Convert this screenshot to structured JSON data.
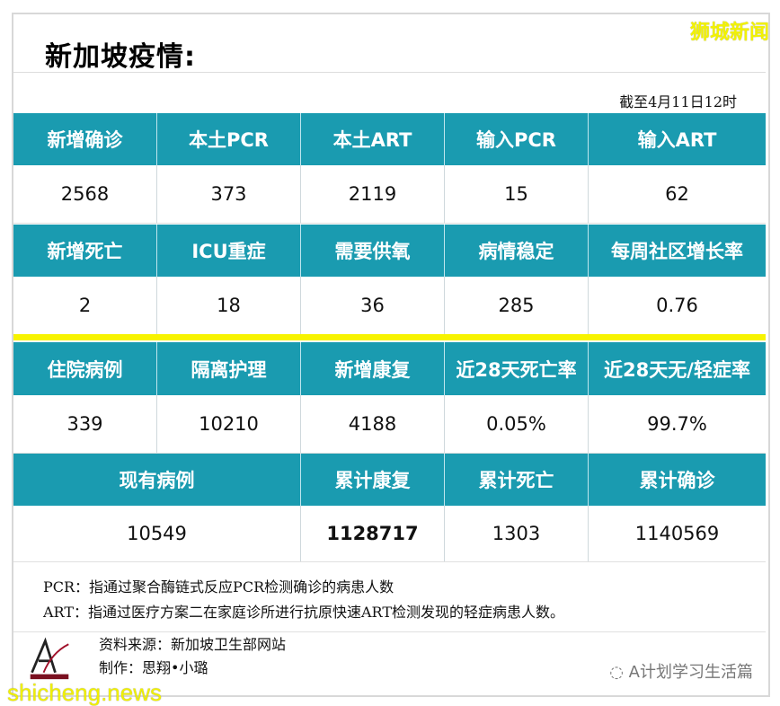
{
  "header": {
    "title": "新加坡疫情:",
    "watermark_top": "狮城新闻",
    "date": "截至4月11日12时"
  },
  "colors": {
    "header_bg": "#1a9bb0",
    "divider": "#f7f300"
  },
  "sections": [
    {
      "headers": [
        "新增确诊",
        "本土PCR",
        "本土ART",
        "输入PCR",
        "输入ART"
      ],
      "values": [
        "2568",
        "373",
        "2119",
        "15",
        "62"
      ]
    },
    {
      "headers": [
        "新增死亡",
        "ICU重症",
        "需要供氧",
        "病情稳定",
        "每周社区增长率"
      ],
      "values": [
        "2",
        "18",
        "36",
        "285",
        "0.76"
      ]
    },
    {
      "headers": [
        "住院病例",
        "隔离护理",
        "新增康复",
        "近28天死亡率",
        "近28天无/轻症率"
      ],
      "values": [
        "339",
        "10210",
        "4188",
        "0.05%",
        "99.7%"
      ]
    },
    {
      "headers": [
        "现有病例",
        "累计康复",
        "累计死亡",
        "累计确诊"
      ],
      "values": [
        "10549",
        "1128717",
        "1303",
        "1140569"
      ]
    }
  ],
  "notes": [
    "PCR：指通过聚合酶链式反应PCR检测确诊的病患人数",
    "ART：指通过医疗方案二在家庭诊所进行抗原快速ART检测发现的轻症病患人数。"
  ],
  "footer": {
    "source": "资料来源：新加坡卫生部网站",
    "author": "制作：思翔•小璐",
    "wechat": "A计划学习生活篇",
    "wechat_icon": "wechat-icon",
    "logo_text": "学习生活篇",
    "watermark_bottom": "shicheng.news"
  }
}
